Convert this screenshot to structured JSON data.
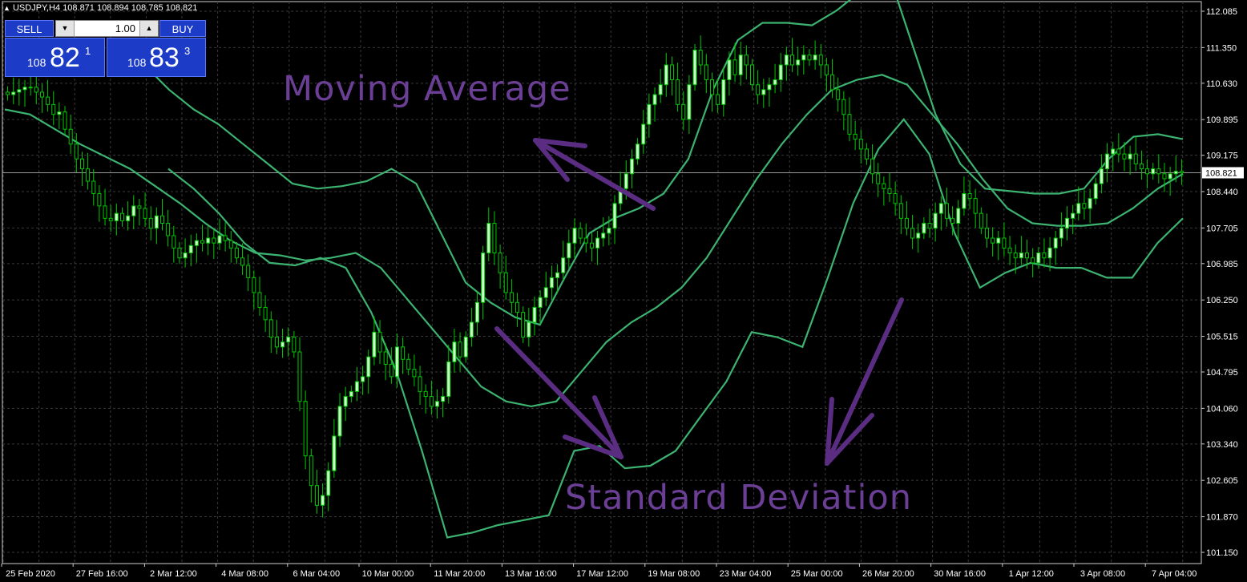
{
  "window": {
    "symbol_label": "USDJPY,H4",
    "ohlc_label": "108.871 108.894 108.785 108.821",
    "title_icon": "triangle-up-icon"
  },
  "trade_panel": {
    "sell_label": "SELL",
    "buy_label": "BUY",
    "lot_value": "1.00",
    "lot_down_icon": "arrow-down-icon",
    "lot_up_icon": "arrow-up-icon",
    "sell_price": {
      "prefix": "108",
      "big": "82",
      "sup": "1"
    },
    "buy_price": {
      "prefix": "108",
      "big": "83",
      "sup": "3"
    }
  },
  "annotations": {
    "moving_average": "Moving Average",
    "standard_deviation": "Standard Deviation"
  },
  "colors": {
    "background": "#000000",
    "candle_bull": "#c8ffc8",
    "candle_bear": "#000000",
    "candle_wick": "#00c800",
    "band": "#3cb371",
    "grid": "#3a3a3a",
    "annotation": "#5a2d82",
    "axis_text": "#ffffff",
    "trade_panel_blue": "#1c3cc8"
  },
  "chart_data": {
    "type": "line",
    "title": "USDJPY,H4",
    "price_axis_ticks": [
      "112.085",
      "111.350",
      "110.630",
      "109.895",
      "109.175",
      "108.440",
      "107.705",
      "106.985",
      "106.250",
      "105.515",
      "104.795",
      "104.060",
      "103.340",
      "102.605",
      "101.870",
      "101.150"
    ],
    "current_price_label": "108.821",
    "ylim": [
      101.15,
      112.085
    ],
    "time_axis_ticks": [
      "25 Feb 2020",
      "27 Feb 16:00",
      "2 Mar 12:00",
      "4 Mar 08:00",
      "6 Mar 04:00",
      "10 Mar 00:00",
      "11 Mar 20:00",
      "13 Mar 16:00",
      "17 Mar 12:00",
      "19 Mar 08:00",
      "23 Mar 04:00",
      "25 Mar 00:00",
      "26 Mar 20:00",
      "30 Mar 16:00",
      "1 Apr 12:00",
      "3 Apr 08:00",
      "7 Apr 04:00"
    ],
    "close_series": [
      110.4,
      110.45,
      110.5,
      110.55,
      110.55,
      110.45,
      110.35,
      110.2,
      110.0,
      110.05,
      109.7,
      109.4,
      109.1,
      108.9,
      108.65,
      108.4,
      108.15,
      107.9,
      107.85,
      108.0,
      107.85,
      107.95,
      108.15,
      108.1,
      107.9,
      107.7,
      107.95,
      107.8,
      107.55,
      107.3,
      107.1,
      107.2,
      107.35,
      107.45,
      107.4,
      107.5,
      107.4,
      107.55,
      107.45,
      107.3,
      107.1,
      106.95,
      106.7,
      106.4,
      106.1,
      105.85,
      105.5,
      105.3,
      105.4,
      105.5,
      105.2,
      104.2,
      103.1,
      102.5,
      102.1,
      102.3,
      102.8,
      103.5,
      104.1,
      104.3,
      104.4,
      104.6,
      104.7,
      105.1,
      105.6,
      105.2,
      104.95,
      104.7,
      105.3,
      105.05,
      104.85,
      104.7,
      104.4,
      104.3,
      104.1,
      104.2,
      104.3,
      105.0,
      105.4,
      105.1,
      105.5,
      105.8,
      106.2,
      107.2,
      107.8,
      107.2,
      106.8,
      106.4,
      106.2,
      106.0,
      105.5,
      105.8,
      106.1,
      106.3,
      106.5,
      106.7,
      106.8,
      107.1,
      107.4,
      107.7,
      107.5,
      107.4,
      107.3,
      107.5,
      107.6,
      107.7,
      108.2,
      108.5,
      108.8,
      109.1,
      109.4,
      109.8,
      110.2,
      110.4,
      110.6,
      111.0,
      110.7,
      110.2,
      109.9,
      110.6,
      111.3,
      111.0,
      110.7,
      110.4,
      110.2,
      110.7,
      111.1,
      110.8,
      111.2,
      111.0,
      110.6,
      110.4,
      110.5,
      110.6,
      110.7,
      111.0,
      111.2,
      111.0,
      111.1,
      111.2,
      111.1,
      111.2,
      111.0,
      110.8,
      110.5,
      110.3,
      110.0,
      109.6,
      109.5,
      109.3,
      109.1,
      108.8,
      108.6,
      108.5,
      108.4,
      108.2,
      107.9,
      107.7,
      107.5,
      107.6,
      107.8,
      107.7,
      108.0,
      108.2,
      107.9,
      107.8,
      108.1,
      108.4,
      108.3,
      108.0,
      107.7,
      107.5,
      107.4,
      107.5,
      107.3,
      107.2,
      107.1,
      107.2,
      107.1,
      107.0,
      107.2,
      107.1,
      107.3,
      107.5,
      107.7,
      107.9,
      108.0,
      108.2,
      108.1,
      108.3,
      108.6,
      108.9,
      109.2,
      109.3,
      109.2,
      109.1,
      109.2,
      109.0,
      108.9,
      108.8,
      108.9,
      108.8,
      108.7,
      108.8,
      108.85,
      108.82
    ],
    "bollinger_middle": [
      110.1,
      110.0,
      109.7,
      109.4,
      109.15,
      108.9,
      108.55,
      108.2,
      107.8,
      107.45,
      107.2,
      107.15,
      107.05,
      107.1,
      107.2,
      106.9,
      106.3,
      105.7,
      105.1,
      104.5,
      104.2,
      104.1,
      104.2,
      104.8,
      105.4,
      105.8,
      106.1,
      106.5,
      107.1,
      107.9,
      108.7,
      109.4,
      110.0,
      110.5,
      110.7,
      110.8,
      110.6,
      110.0,
      109.4,
      108.7,
      108.1,
      107.8,
      107.75,
      107.75,
      107.8,
      108.1,
      108.5,
      108.8
    ],
    "bollinger_upper": [
      111.0,
      110.5,
      110.1,
      109.8,
      109.4,
      109.0,
      108.6,
      108.5,
      108.55,
      108.65,
      108.9,
      108.6,
      107.6,
      106.6,
      106.2,
      105.9,
      105.75,
      106.7,
      107.6,
      107.9,
      108.1,
      108.4,
      109.1,
      110.5,
      111.5,
      111.85,
      111.85,
      111.8,
      112.1,
      112.5,
      113.0,
      111.5,
      110.0,
      109.0,
      108.5,
      108.45,
      108.4,
      108.4,
      108.5,
      109.1,
      109.55,
      109.6,
      109.5
    ],
    "bollinger_lower": [
      108.9,
      108.5,
      108.0,
      107.4,
      107.0,
      106.95,
      107.1,
      106.9,
      106.0,
      104.8,
      103.2,
      101.45,
      101.55,
      101.7,
      101.8,
      101.9,
      103.2,
      103.3,
      102.85,
      102.9,
      103.2,
      103.9,
      104.6,
      105.6,
      105.5,
      105.3,
      106.7,
      108.2,
      109.3,
      109.9,
      109.2,
      107.6,
      106.5,
      106.8,
      107.0,
      106.9,
      106.9,
      106.7,
      106.7,
      107.4,
      107.9
    ]
  }
}
